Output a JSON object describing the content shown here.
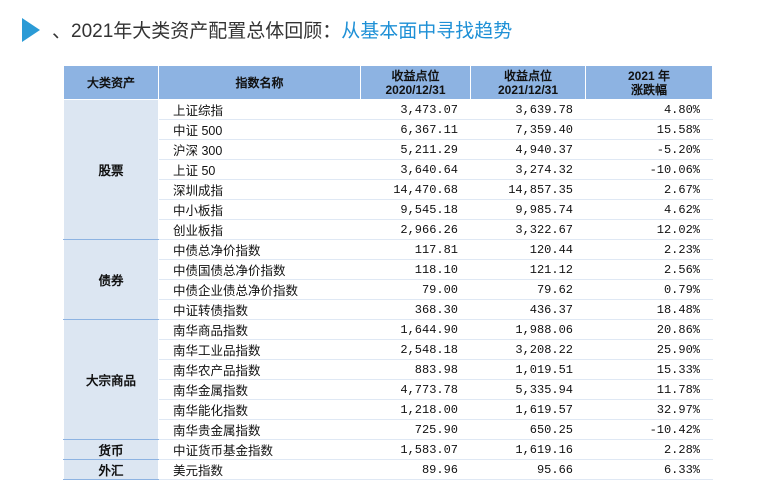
{
  "header": {
    "title_prefix": "、2021年大类资产配置总体回顾：",
    "title_highlight": "从基本面中寻找趋势"
  },
  "table": {
    "columns": [
      [
        "大类资产"
      ],
      [
        "指数名称"
      ],
      [
        "收益点位",
        "2020/12/31"
      ],
      [
        "收益点位",
        "2021/12/31"
      ],
      [
        "2021 年",
        "涨跌幅"
      ]
    ],
    "groups": [
      {
        "name": "股票",
        "rows": [
          [
            "上证综指",
            "3,473.07",
            "3,639.78",
            "4.80%"
          ],
          [
            "中证 500",
            "6,367.11",
            "7,359.40",
            "15.58%"
          ],
          [
            "沪深 300",
            "5,211.29",
            "4,940.37",
            "-5.20%"
          ],
          [
            "上证 50",
            "3,640.64",
            "3,274.32",
            "-10.06%"
          ],
          [
            "深圳成指",
            "14,470.68",
            "14,857.35",
            "2.67%"
          ],
          [
            "中小板指",
            "9,545.18",
            "9,985.74",
            "4.62%"
          ],
          [
            "创业板指",
            "2,966.26",
            "3,322.67",
            "12.02%"
          ]
        ]
      },
      {
        "name": "债券",
        "rows": [
          [
            "中债总净价指数",
            "117.81",
            "120.44",
            "2.23%"
          ],
          [
            "中债国债总净价指数",
            "118.10",
            "121.12",
            "2.56%"
          ],
          [
            "中债企业债总净价指数",
            "79.00",
            "79.62",
            "0.79%"
          ],
          [
            "中证转债指数",
            "368.30",
            "436.37",
            "18.48%"
          ]
        ]
      },
      {
        "name": "大宗商品",
        "rows": [
          [
            "南华商品指数",
            "1,644.90",
            "1,988.06",
            "20.86%"
          ],
          [
            "南华工业品指数",
            "2,548.18",
            "3,208.22",
            "25.90%"
          ],
          [
            "南华农产品指数",
            "883.98",
            "1,019.51",
            "15.33%"
          ],
          [
            "南华金属指数",
            "4,773.78",
            "5,335.94",
            "11.78%"
          ],
          [
            "南华能化指数",
            "1,218.00",
            "1,619.57",
            "32.97%"
          ],
          [
            "南华贵金属指数",
            "725.90",
            "650.25",
            "-10.42%"
          ]
        ]
      },
      {
        "name": "货币",
        "rows": [
          [
            "中证货币基金指数",
            "1,583.07",
            "1,619.16",
            "2.28%"
          ]
        ]
      },
      {
        "name": "外汇",
        "rows": [
          [
            "美元指数",
            "89.96",
            "95.66",
            "6.33%"
          ]
        ]
      }
    ]
  }
}
